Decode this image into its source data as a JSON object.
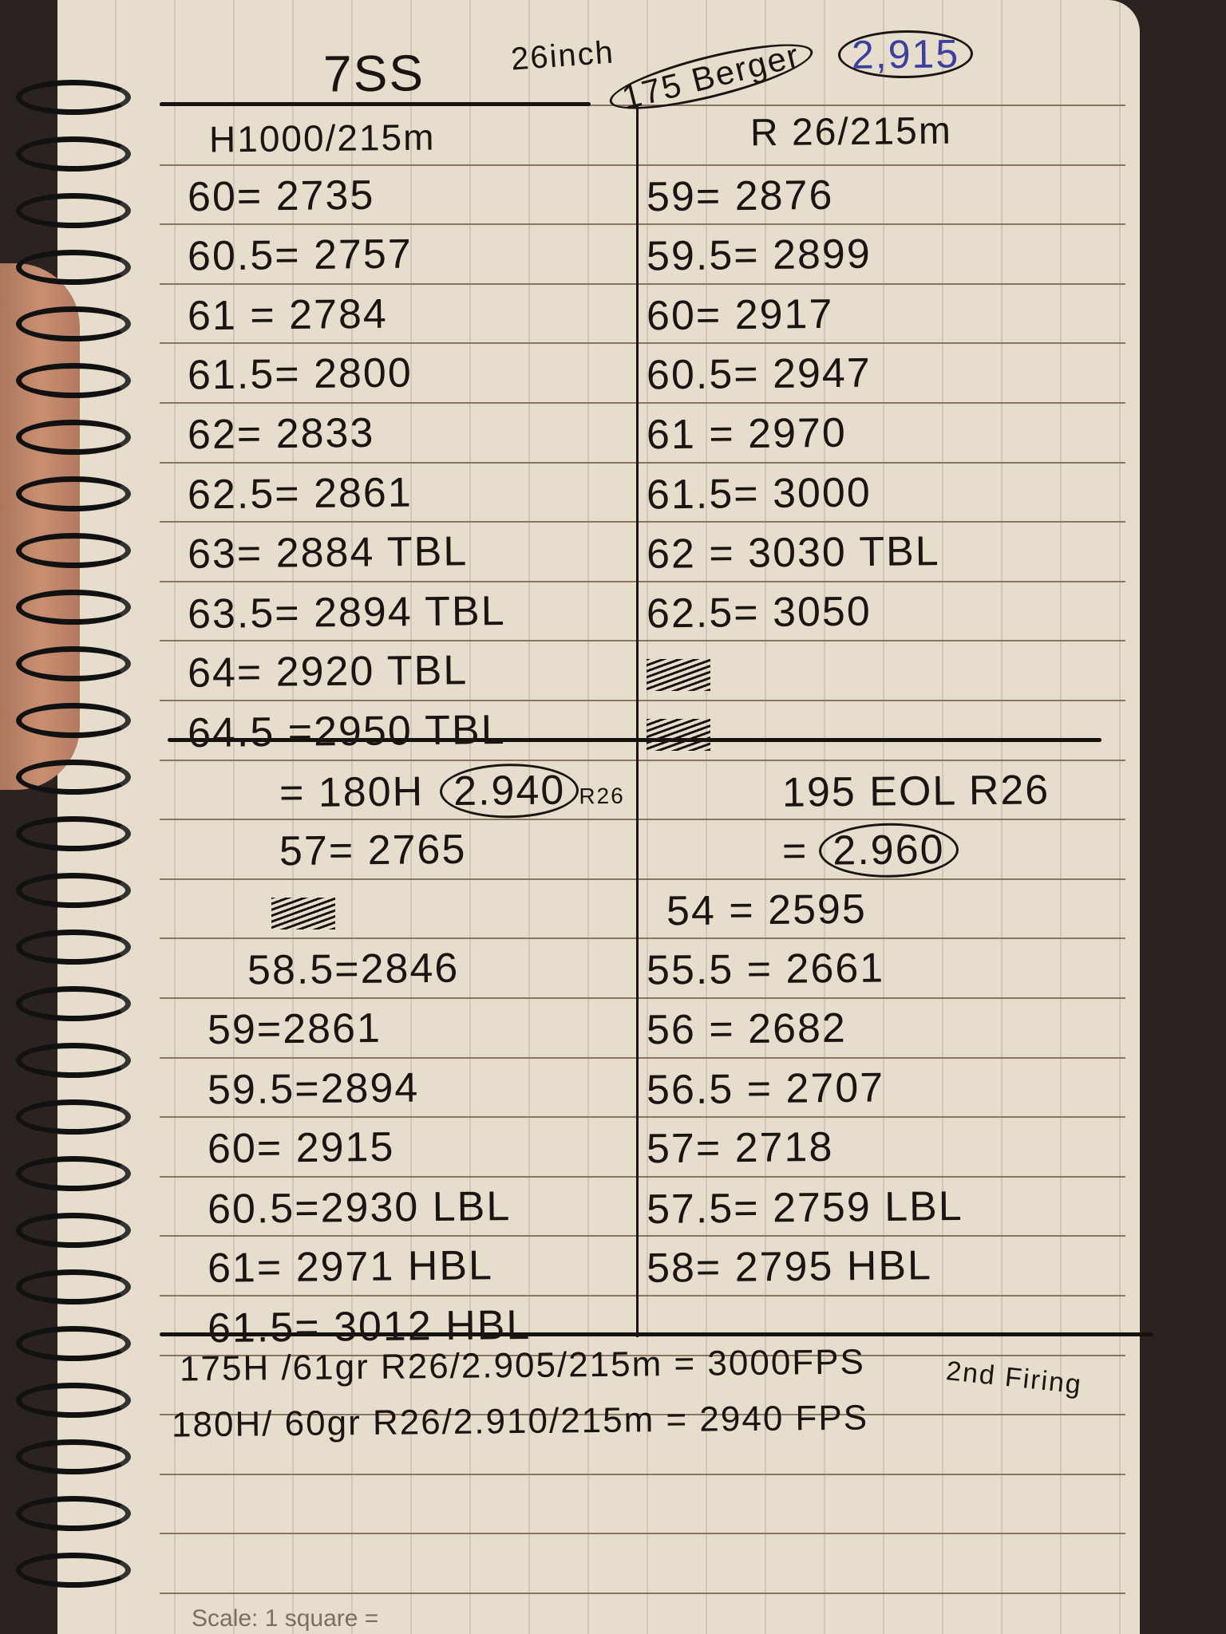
{
  "header": {
    "cartridge": "7SS",
    "barrel": "26inch",
    "bullet": "175 Berger",
    "coal": "2,915"
  },
  "left_column": {
    "title": "H1000/215m",
    "rows": [
      "60= 2735",
      "60.5= 2757",
      "61 = 2784",
      "61.5= 2800",
      "62= 2833",
      "62.5= 2861",
      "63= 2884 TBL",
      "63.5= 2894 TBL",
      "64= 2920 TBL",
      "64.5 =2950 TBL",
      "= 180H",
      "57= 2765",
      "",
      "58.5=2846",
      "59=2861",
      "59.5=2894",
      "60= 2915",
      "60.5=2930 LBL",
      "61= 2971 HBL",
      "61.5= 3012 HBL"
    ],
    "row11_circled": "2.940",
    "row11_suffix": "R26"
  },
  "right_column": {
    "title": "R 26/215m",
    "rows": [
      "59= 2876",
      "59.5= 2899",
      "60= 2917",
      "60.5= 2947",
      "61 = 2970",
      "61.5= 3000",
      "62 = 3030 TBL",
      "62.5= 3050",
      "",
      "",
      "195 EOL   R26",
      "=",
      "54 = 2595",
      "55.5 = 2661",
      "56 = 2682",
      "56.5 = 2707",
      "57= 2718",
      "57.5= 2759 LBL",
      "58= 2795 HBL"
    ],
    "row12_circled": "2.960"
  },
  "summary": [
    "175H /61gr R26/2.905/215m = 3000FPS",
    "180H/ 60gr R26/2.910/215m = 2940 FPS"
  ],
  "side_note": "2nd Firing",
  "footer": "Scale: 1 square ="
}
